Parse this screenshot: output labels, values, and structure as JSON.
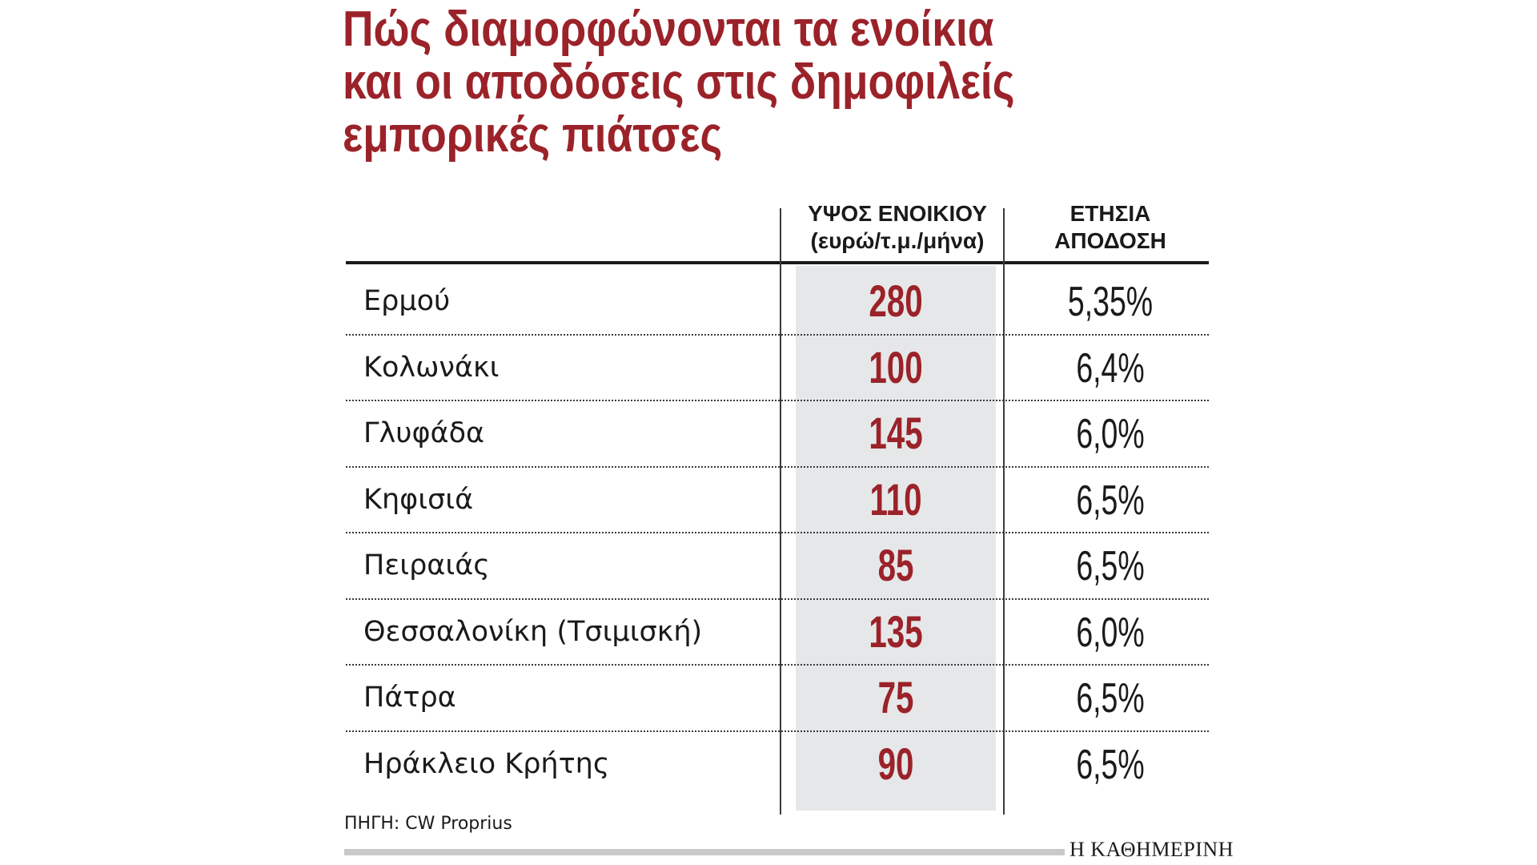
{
  "title_lines": [
    "Πώς διαμορφώνονται τα ενοίκια",
    "και οι αποδόσεις στις δημοφιλείς",
    "εμπορικές πιάτσες"
  ],
  "columns": {
    "rent_header_line1": "ΥΨΟΣ ΕΝΟΙΚΙΟΥ",
    "rent_header_line2": "(ευρώ/τ.μ./μήνα)",
    "yield_header_line1": "ΕΤΗΣΙΑ",
    "yield_header_line2": "ΑΠΟΔΟΣΗ"
  },
  "source": "ΠΗΓΗ: CW Proprius",
  "brand": "Η ΚΑΘΗΜΕΡΙΝΗ",
  "colors": {
    "accent": "#9b2229",
    "shade": "#e6e7e8",
    "text": "#1a1a1a"
  },
  "chart_data": {
    "type": "table",
    "title": "Πώς διαμορφώνονται τα ενοίκια και οι αποδόσεις στις δημοφιλείς εμπορικές πιάτσες",
    "columns": [
      "",
      "ΥΨΟΣ ΕΝΟΙΚΙΟΥ (ευρώ/τ.μ./μήνα)",
      "ΕΤΗΣΙΑ ΑΠΟΔΟΣΗ"
    ],
    "rows": [
      {
        "location": "Ερμού",
        "rent": "280",
        "yield": "5,35%"
      },
      {
        "location": "Κολωνάκι",
        "rent": "100",
        "yield": "6,4%"
      },
      {
        "location": "Γλυφάδα",
        "rent": "145",
        "yield": "6,0%"
      },
      {
        "location": "Κηφισιά",
        "rent": "110",
        "yield": "6,5%"
      },
      {
        "location": "Πειραιάς",
        "rent": "85",
        "yield": "6,5%"
      },
      {
        "location": "Θεσσαλονίκη (Τσιμισκή)",
        "rent": "135",
        "yield": "6,0%"
      },
      {
        "location": "Πάτρα",
        "rent": "75",
        "yield": "6,5%"
      },
      {
        "location": "Ηράκλειο Κρήτης",
        "rent": "90",
        "yield": "6,5%"
      }
    ]
  }
}
